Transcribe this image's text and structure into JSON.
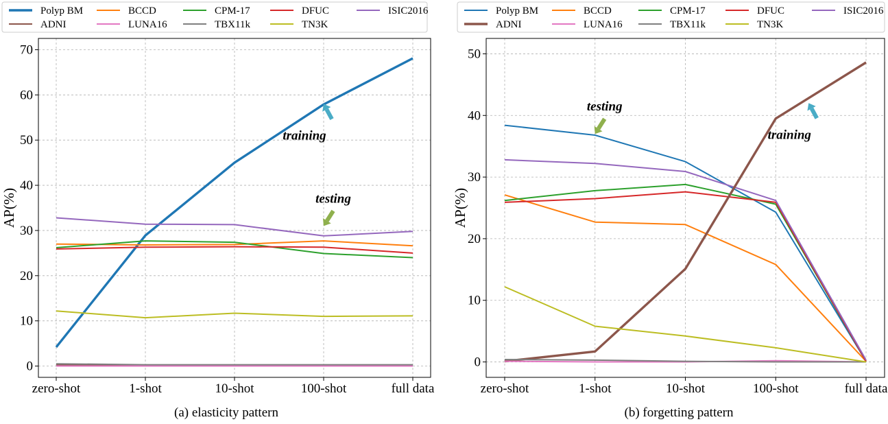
{
  "chart_data": [
    {
      "type": "line",
      "caption": "(a) elasticity pattern",
      "ylabel": "AP(%)",
      "xlabel": "",
      "categories": [
        "zero-shot",
        "1-shot",
        "10-shot",
        "100-shot",
        "full data"
      ],
      "ylim": [
        -2.5,
        72.5
      ],
      "yticks": [
        0,
        10,
        20,
        30,
        40,
        50,
        60,
        70
      ],
      "grid": true,
      "legend_position": "top",
      "series": [
        {
          "name": "Polyp BM",
          "color": "#1f77b4",
          "emphasis": true,
          "values": [
            4.2,
            28.9,
            45.0,
            57.9,
            68.1
          ]
        },
        {
          "name": "BCCD",
          "color": "#ff7f0e",
          "values": [
            27.0,
            26.8,
            26.9,
            27.7,
            26.6
          ]
        },
        {
          "name": "CPM-17",
          "color": "#2ca02c",
          "values": [
            26.2,
            27.7,
            27.4,
            24.9,
            24.0
          ]
        },
        {
          "name": "DFUC",
          "color": "#d62728",
          "values": [
            25.9,
            26.3,
            26.4,
            26.3,
            25.0
          ]
        },
        {
          "name": "ISIC2016",
          "color": "#9467bd",
          "values": [
            32.8,
            31.4,
            31.3,
            28.8,
            29.8
          ]
        },
        {
          "name": "ADNI",
          "color": "#8c564b",
          "values": [
            0.3,
            0.2,
            0.2,
            0.2,
            0.2
          ]
        },
        {
          "name": "LUNA16",
          "color": "#e377c2",
          "values": [
            0.0,
            0.0,
            0.0,
            0.0,
            0.0
          ]
        },
        {
          "name": "TBX11k",
          "color": "#7f7f7f",
          "values": [
            0.5,
            0.3,
            0.3,
            0.3,
            0.3
          ]
        },
        {
          "name": "TN3K",
          "color": "#bcbd22",
          "values": [
            12.2,
            10.7,
            11.7,
            11.0,
            11.1
          ]
        }
      ],
      "annotations": [
        {
          "text": "training",
          "arrow_color": "#4aacc6",
          "points_to": [
            "100-shot",
            58
          ]
        },
        {
          "text": "testing",
          "arrow_color": "#8fb04d",
          "points_to": [
            "100-shot",
            31
          ]
        }
      ]
    },
    {
      "type": "line",
      "caption": "(b) forgetting pattern",
      "ylabel": "AP(%)",
      "xlabel": "",
      "categories": [
        "zero-shot",
        "1-shot",
        "10-shot",
        "100-shot",
        "full data"
      ],
      "ylim": [
        -2.5,
        52.5
      ],
      "yticks": [
        0,
        10,
        20,
        30,
        40,
        50
      ],
      "grid": true,
      "legend_position": "top",
      "series": [
        {
          "name": "Polyp BM",
          "color": "#1f77b4",
          "values": [
            38.4,
            36.8,
            32.5,
            24.3,
            0.1
          ]
        },
        {
          "name": "BCCD",
          "color": "#ff7f0e",
          "values": [
            27.1,
            22.7,
            22.3,
            15.8,
            0.1
          ]
        },
        {
          "name": "CPM-17",
          "color": "#2ca02c",
          "values": [
            26.2,
            27.8,
            28.8,
            25.6,
            0.1
          ]
        },
        {
          "name": "DFUC",
          "color": "#d62728",
          "values": [
            25.9,
            26.5,
            27.6,
            25.9,
            0.1
          ]
        },
        {
          "name": "ISIC2016",
          "color": "#9467bd",
          "values": [
            32.8,
            32.2,
            30.9,
            26.2,
            0.3
          ]
        },
        {
          "name": "ADNI",
          "color": "#8c564b",
          "emphasis": true,
          "values": [
            0.1,
            1.7,
            15.1,
            39.5,
            48.6
          ]
        },
        {
          "name": "LUNA16",
          "color": "#e377c2",
          "values": [
            0.1,
            0.0,
            0.0,
            0.2,
            0.0
          ]
        },
        {
          "name": "TBX11k",
          "color": "#7f7f7f",
          "values": [
            0.4,
            0.3,
            0.1,
            0.0,
            0.0
          ]
        },
        {
          "name": "TN3K",
          "color": "#bcbd22",
          "values": [
            12.2,
            5.8,
            4.2,
            2.3,
            0.0
          ]
        }
      ],
      "annotations": [
        {
          "text": "testing",
          "arrow_color": "#8fb04d",
          "points_to": [
            "1-shot",
            37
          ]
        },
        {
          "text": "training",
          "arrow_color": "#4aacc6",
          "points_to": [
            "100-shot",
            42
          ]
        }
      ]
    }
  ]
}
